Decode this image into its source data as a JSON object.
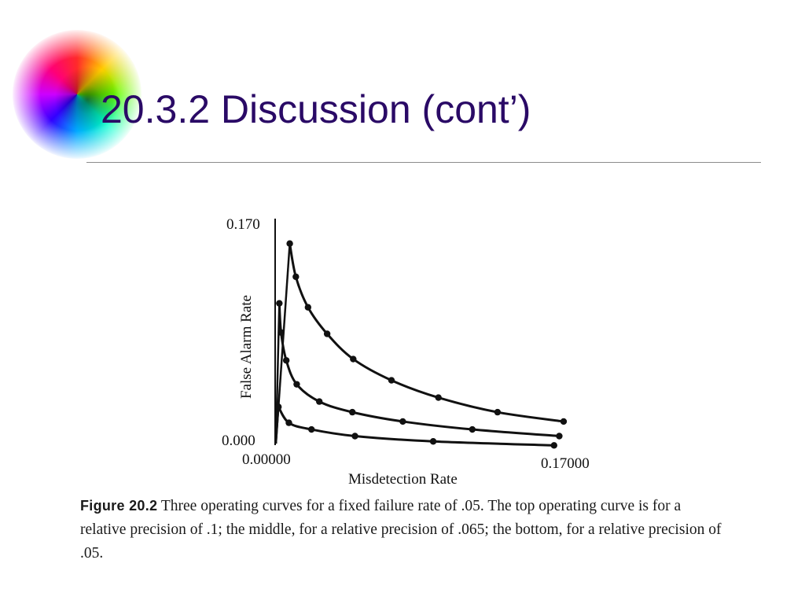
{
  "slide": {
    "title": "20.3.2 Discussion (cont’)"
  },
  "figure": {
    "caption_label": "Figure 20.2",
    "caption_text": " Three operating curves for a fixed failure rate of .05. The top operating curve is for a relative precision of .1; the middle, for a relative precision of .065; the bottom, for a relative precision of .05."
  },
  "chart_data": {
    "type": "line",
    "title": "",
    "xlabel": "Misdetection Rate",
    "ylabel": "False Alarm Rate",
    "xlim": [
      0,
      0.17
    ],
    "ylim": [
      0,
      0.17
    ],
    "x_tick_labels": [
      "0.00000",
      "0.17000"
    ],
    "y_tick_labels": [
      "0.170",
      "0.000"
    ],
    "grid": false,
    "legend": "none",
    "color": "#111111",
    "series": [
      {
        "x": [
          0.0075,
          0.011,
          0.018,
          0.029,
          0.044,
          0.066,
          0.093,
          0.127,
          0.165
        ],
        "y": [
          0.153,
          0.128,
          0.105,
          0.085,
          0.066,
          0.05,
          0.037,
          0.026,
          0.019
        ]
      },
      {
        "x": [
          0.0015,
          0.0025,
          0.0055,
          0.0115,
          0.0245,
          0.0435,
          0.0725,
          0.1125,
          0.1625
        ],
        "y": [
          0.108,
          0.086,
          0.065,
          0.047,
          0.034,
          0.026,
          0.019,
          0.013,
          0.008
        ]
      },
      {
        "x": [
          0.001,
          0.007,
          0.02,
          0.045,
          0.09,
          0.1595
        ],
        "y": [
          0.03,
          0.018,
          0.013,
          0.008,
          0.004,
          0.001
        ]
      }
    ]
  }
}
